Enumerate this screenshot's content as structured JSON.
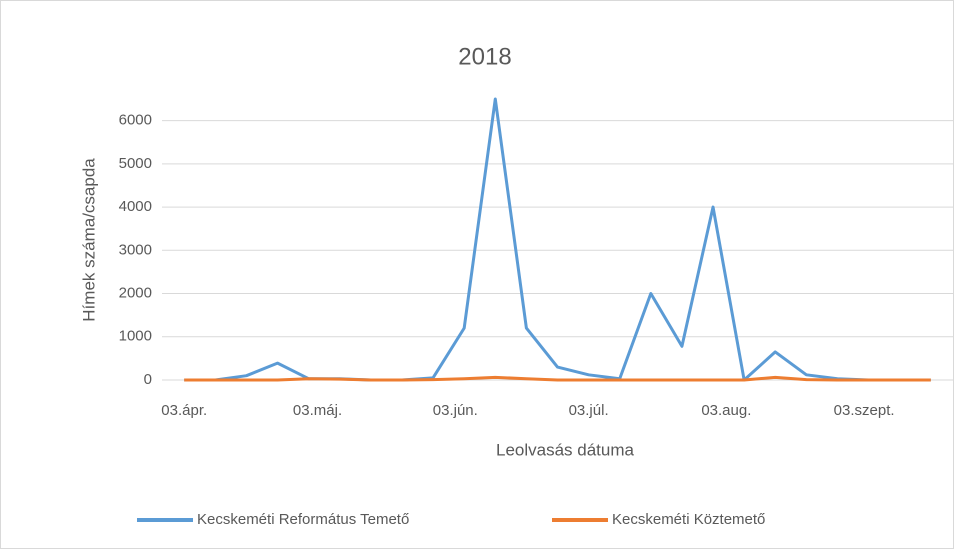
{
  "chart_data": {
    "type": "line",
    "title": "2018",
    "x_label": "Leolvasás dátuma",
    "y_label": "Hímek száma/csapda",
    "x": [
      "04-03",
      "04-10",
      "04-17",
      "04-24",
      "05-01",
      "05-08",
      "05-15",
      "05-22",
      "05-29",
      "06-05",
      "06-12",
      "06-19",
      "06-26",
      "07-03",
      "07-10",
      "07-17",
      "07-24",
      "07-31",
      "08-07",
      "08-14",
      "08-21",
      "08-28",
      "09-04",
      "09-11",
      "09-18"
    ],
    "series": [
      {
        "name": "Kecskeméti Református Temető",
        "color": "#5b9bd5",
        "values": [
          0,
          0,
          100,
          390,
          30,
          30,
          0,
          0,
          50,
          1200,
          6500,
          1200,
          300,
          120,
          30,
          2000,
          780,
          4000,
          0,
          650,
          120,
          30,
          0,
          0,
          0
        ]
      },
      {
        "name": "Kecskeméti Köztemető",
        "color": "#ed7d31",
        "values": [
          0,
          0,
          0,
          0,
          30,
          20,
          0,
          0,
          10,
          30,
          60,
          30,
          0,
          0,
          0,
          0,
          0,
          0,
          0,
          60,
          10,
          0,
          0,
          0,
          0
        ]
      }
    ],
    "xlim": [
      "03-29",
      "09-23"
    ],
    "xticks": [
      {
        "value": "04-03",
        "label": "03.ápr."
      },
      {
        "value": "05-03",
        "label": "03.máj."
      },
      {
        "value": "06-03",
        "label": "03.jún."
      },
      {
        "value": "07-03",
        "label": "03.júl."
      },
      {
        "value": "08-03",
        "label": "03.aug."
      },
      {
        "value": "09-03",
        "label": "03.szept."
      }
    ],
    "ylim": [
      0,
      6500
    ],
    "yticks": [
      0,
      1000,
      2000,
      3000,
      4000,
      5000,
      6000
    ],
    "grid": true,
    "legend": "bottom"
  }
}
